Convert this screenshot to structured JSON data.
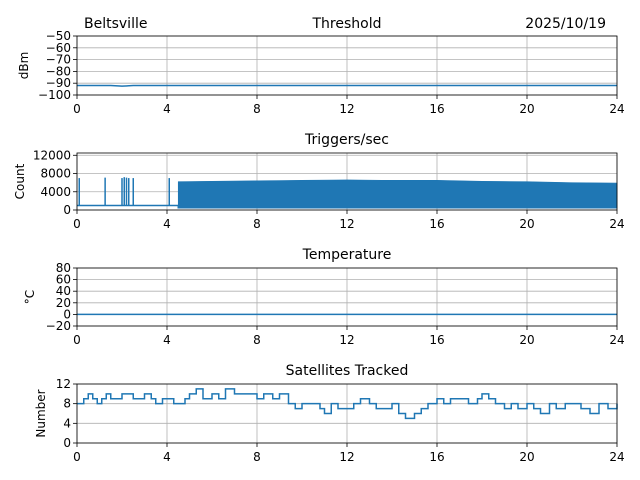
{
  "header": {
    "site": "Beltsville",
    "date": "2025/10/19"
  },
  "colors": {
    "series": "#1f77b4",
    "grid": "#b0b0b0"
  },
  "chart_data": [
    {
      "type": "line",
      "title": "Threshold",
      "ylabel": "dBm",
      "xlabel": "",
      "xlim": [
        0,
        24
      ],
      "ylim": [
        -100,
        -50
      ],
      "xticks": [
        0,
        4,
        8,
        12,
        16,
        20,
        24
      ],
      "yticks": [
        -100,
        -90,
        -80,
        -70,
        -60,
        -50
      ],
      "ytick_labels": [
        "−100",
        "−90",
        "−80",
        "−70",
        "−60",
        "−50"
      ],
      "grid": true,
      "series": [
        {
          "name": "threshold",
          "x": [
            0,
            1.5,
            2.0,
            2.5,
            4.3,
            24
          ],
          "y": [
            -92,
            -92,
            -92.5,
            -92,
            -92,
            -92
          ]
        }
      ]
    },
    {
      "type": "line",
      "title": "Triggers/sec",
      "ylabel": "Count",
      "xlabel": "",
      "xlim": [
        0,
        24
      ],
      "ylim": [
        0,
        12500
      ],
      "xticks": [
        0,
        4,
        8,
        12,
        16,
        20,
        24
      ],
      "yticks": [
        0,
        4000,
        8000,
        12000
      ],
      "ytick_labels": [
        "0",
        "4000",
        "8000",
        "12000"
      ],
      "grid": true,
      "series": [
        {
          "name": "baseline",
          "x": [
            0,
            4.5,
            4.5,
            24
          ],
          "y": [
            1000,
            1000,
            500,
            500
          ]
        }
      ],
      "envelope": {
        "x": [
          4.5,
          6,
          8,
          10,
          12,
          14,
          16,
          18,
          20,
          22,
          24
        ],
        "low": [
          600,
          600,
          600,
          600,
          600,
          600,
          600,
          600,
          600,
          600,
          500
        ],
        "high": [
          6200,
          6300,
          6400,
          6500,
          6600,
          6500,
          6500,
          6300,
          6200,
          6000,
          5900
        ]
      },
      "spikes": [
        {
          "x": 0.1,
          "y": 7000
        },
        {
          "x": 1.25,
          "y": 7100
        },
        {
          "x": 2.0,
          "y": 7000
        },
        {
          "x": 2.1,
          "y": 7200
        },
        {
          "x": 2.2,
          "y": 7100
        },
        {
          "x": 2.3,
          "y": 7000
        },
        {
          "x": 2.5,
          "y": 7000
        },
        {
          "x": 4.1,
          "y": 7000
        }
      ]
    },
    {
      "type": "line",
      "title": "Temperature",
      "ylabel": "°C",
      "xlabel": "",
      "xlim": [
        0,
        24
      ],
      "ylim": [
        -20,
        80
      ],
      "xticks": [
        0,
        4,
        8,
        12,
        16,
        20,
        24
      ],
      "yticks": [
        -20,
        0,
        20,
        40,
        60,
        80
      ],
      "ytick_labels": [
        "−20",
        "0",
        "20",
        "40",
        "60",
        "80"
      ],
      "grid": true,
      "series": [
        {
          "name": "temperature",
          "x": [
            0,
            24
          ],
          "y": [
            0,
            0
          ]
        }
      ]
    },
    {
      "type": "line",
      "title": "Satellites Tracked",
      "ylabel": "Number",
      "xlabel": "",
      "xlim": [
        0,
        24
      ],
      "ylim": [
        0,
        12
      ],
      "xticks": [
        0,
        4,
        8,
        12,
        16,
        20,
        24
      ],
      "yticks": [
        0,
        4,
        8,
        12
      ],
      "ytick_labels": [
        "0",
        "4",
        "8",
        "12"
      ],
      "grid": true,
      "step": true,
      "series": [
        {
          "name": "satellites",
          "x": [
            0,
            0.3,
            0.5,
            0.7,
            0.9,
            1.1,
            1.3,
            1.5,
            2.0,
            2.5,
            3.0,
            3.3,
            3.5,
            3.8,
            4.0,
            4.3,
            4.8,
            5.0,
            5.3,
            5.6,
            6.0,
            6.3,
            6.6,
            7.0,
            7.5,
            8.0,
            8.3,
            8.7,
            9.0,
            9.4,
            9.7,
            10.0,
            10.4,
            10.8,
            11.0,
            11.3,
            11.6,
            12.0,
            12.3,
            12.6,
            13.0,
            13.3,
            13.6,
            14.0,
            14.3,
            14.6,
            15.0,
            15.3,
            15.6,
            16.0,
            16.3,
            16.6,
            17.0,
            17.4,
            17.8,
            18.0,
            18.3,
            18.6,
            19.0,
            19.3,
            19.6,
            20.0,
            20.3,
            20.6,
            21.0,
            21.3,
            21.7,
            22.0,
            22.4,
            22.8,
            23.2,
            23.6,
            24
          ],
          "y": [
            8,
            9,
            10,
            9,
            8,
            9,
            10,
            9,
            10,
            9,
            10,
            9,
            8,
            9,
            9,
            8,
            9,
            10,
            11,
            9,
            10,
            9,
            11,
            10,
            10,
            9,
            10,
            9,
            10,
            8,
            7,
            8,
            8,
            7,
            6,
            8,
            7,
            7,
            8,
            9,
            8,
            7,
            7,
            8,
            6,
            5,
            6,
            7,
            8,
            9,
            8,
            9,
            9,
            8,
            9,
            10,
            9,
            8,
            7,
            8,
            7,
            8,
            7,
            6,
            8,
            7,
            8,
            8,
            7,
            6,
            8,
            7,
            8
          ]
        }
      ]
    }
  ]
}
